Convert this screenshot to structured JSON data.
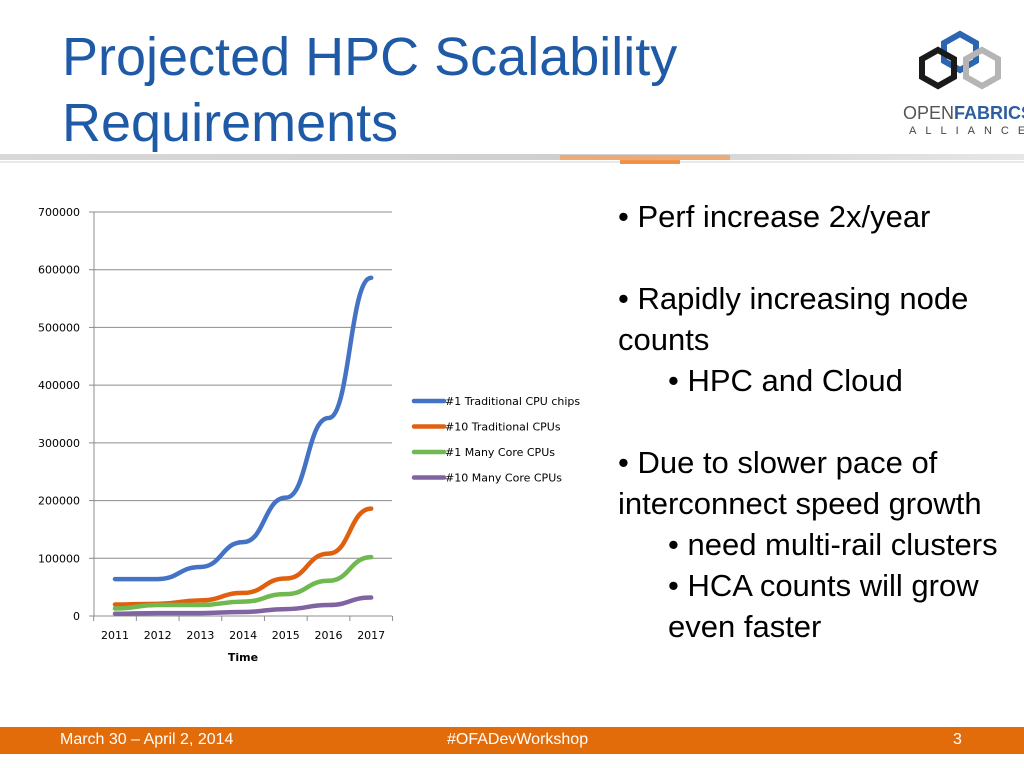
{
  "title": {
    "line1": "Projected HPC Scalability",
    "line2": "Requirements"
  },
  "logo": {
    "word_a": "OPEN",
    "word_b": "FABRICS",
    "word_c": "ALLIANCE"
  },
  "bullets": [
    {
      "text": "• Perf increase 2x/year",
      "level": 1
    },
    {
      "text": "• Rapidly increasing node counts",
      "level": 1
    },
    {
      "text": "• HPC and Cloud",
      "level": 2
    },
    {
      "text": "• Due to slower pace of interconnect speed growth",
      "level": 1
    },
    {
      "text": "• need multi-rail clusters",
      "level": 2
    },
    {
      "text": "• HCA counts will grow even faster",
      "level": 2
    }
  ],
  "footer": {
    "date": "March 30 – April 2, 2014",
    "hashtag": "#OFADevWorkshop",
    "page": "3"
  },
  "colors": {
    "title": "#1f5aa6",
    "footer_bg": "#e36c0a",
    "series": [
      "#4472c4",
      "#e06010",
      "#70b850",
      "#8064a2"
    ]
  },
  "chart_data": {
    "type": "line",
    "x": [
      "2011",
      "2012",
      "2013",
      "2014",
      "2015",
      "2016",
      "2017"
    ],
    "xlabel": "Time",
    "ylabel": "",
    "ylim": [
      0,
      700000
    ],
    "yticks": [
      "0",
      "100000",
      "200000",
      "300000",
      "400000",
      "500000",
      "600000",
      "700000"
    ],
    "grid": true,
    "legend": "right",
    "series": [
      {
        "name": "#1 Traditional CPU chips",
        "values": [
          64000,
          64000,
          85000,
          128000,
          205000,
          343000,
          586000
        ]
      },
      {
        "name": "#10 Traditional CPUs",
        "values": [
          20000,
          21000,
          27000,
          40000,
          65000,
          108000,
          186000
        ]
      },
      {
        "name": "#1 Many Core CPUs",
        "values": [
          13000,
          19000,
          19000,
          25000,
          38000,
          61000,
          102000
        ]
      },
      {
        "name": "#10 Many Core CPUs",
        "values": [
          4000,
          5000,
          5000,
          7000,
          12000,
          19000,
          32000
        ]
      }
    ]
  }
}
